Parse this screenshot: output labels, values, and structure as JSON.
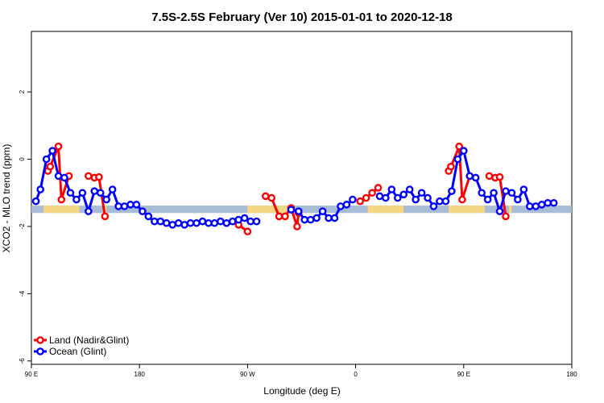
{
  "chart_data": {
    "type": "line",
    "title": "7.5S-2.5S February (Ver 10)   2015-01-01 to 2020-12-18",
    "xlabel": "Longitude (deg E)",
    "ylabel": "XCO2 - MLO trend (ppm)",
    "xlim": [
      90,
      450
    ],
    "ylim": [
      -6.1,
      3.8
    ],
    "x_ticks": [
      {
        "value": 90,
        "label": "90 E"
      },
      {
        "value": 162,
        "label": "180"
      },
      {
        "value": 234,
        "label": "90 W"
      },
      {
        "value": 306,
        "label": "0"
      },
      {
        "value": 378,
        "label": "90 E"
      },
      {
        "value": 450,
        "label": "180"
      }
    ],
    "y_ticks": [
      {
        "value": 2,
        "label": "2"
      },
      {
        "value": 0,
        "label": "0"
      },
      {
        "value": -2,
        "label": "-2"
      },
      {
        "value": -4,
        "label": "-4"
      },
      {
        "value": -6,
        "label": "-6"
      }
    ],
    "band": {
      "y_range": [
        -1.6,
        -1.38
      ],
      "ocean_color": "#a8bcd8",
      "land_color": "#f5d682",
      "land_ranges": [
        [
          98,
          100
        ],
        [
          100,
          122
        ],
        [
          138,
          140
        ],
        [
          234,
          262
        ],
        [
          314,
          338
        ],
        [
          368,
          370
        ],
        [
          370,
          392
        ],
        [
          408,
          410
        ]
      ]
    },
    "series": [
      {
        "name": "Land (Nadir&Glint)",
        "color": "#ff0000",
        "segments": [
          [
            [
              101,
              -0.35
            ],
            [
              102.5,
              -0.22
            ],
            [
              108,
              0.38
            ],
            [
              110,
              -1.2
            ],
            [
              115,
              -0.5
            ]
          ],
          [
            [
              128,
              -0.5
            ],
            [
              132,
              -0.55
            ],
            [
              135,
              -0.53
            ],
            [
              139,
              -1.7
            ]
          ],
          [
            [
              228,
              -1.95
            ],
            [
              234,
              -2.15
            ]
          ],
          [
            [
              246,
              -1.1
            ],
            [
              250,
              -1.15
            ],
            [
              255,
              -1.7
            ],
            [
              259,
              -1.7
            ],
            [
              263,
              -1.45
            ],
            [
              267,
              -2.0
            ],
            [
              268,
              -1.6
            ]
          ],
          [
            [
              309,
              -1.25
            ],
            [
              313,
              -1.15
            ],
            [
              317,
              -1.0
            ],
            [
              321,
              -0.85
            ]
          ],
          [
            [
              368,
              -0.35
            ],
            [
              369.5,
              -0.22
            ],
            [
              375,
              0.38
            ],
            [
              377,
              -1.2
            ],
            [
              382,
              -0.5
            ]
          ],
          [
            [
              395,
              -0.5
            ],
            [
              399,
              -0.55
            ],
            [
              402,
              -0.53
            ],
            [
              406,
              -1.7
            ]
          ]
        ]
      },
      {
        "name": "Ocean (Glint)",
        "color": "#0000ff",
        "segments": [
          [
            [
              93,
              -1.25
            ],
            [
              96,
              -0.9
            ],
            [
              100,
              0.0
            ],
            [
              104,
              0.25
            ],
            [
              108,
              -0.5
            ],
            [
              112,
              -0.55
            ],
            [
              116,
              -1.0
            ],
            [
              120,
              -1.2
            ],
            [
              124,
              -1.0
            ],
            [
              128,
              -1.55
            ],
            [
              132,
              -0.95
            ],
            [
              136,
              -1.0
            ],
            [
              140,
              -1.2
            ],
            [
              144,
              -0.9
            ],
            [
              148,
              -1.4
            ],
            [
              152,
              -1.4
            ],
            [
              156,
              -1.35
            ],
            [
              160,
              -1.35
            ],
            [
              164,
              -1.55
            ],
            [
              168,
              -1.7
            ],
            [
              172,
              -1.85
            ],
            [
              176,
              -1.85
            ],
            [
              180,
              -1.9
            ],
            [
              184,
              -1.95
            ],
            [
              188,
              -1.9
            ],
            [
              192,
              -1.95
            ],
            [
              196,
              -1.9
            ],
            [
              200,
              -1.9
            ],
            [
              204,
              -1.85
            ],
            [
              208,
              -1.9
            ],
            [
              212,
              -1.9
            ],
            [
              216,
              -1.85
            ],
            [
              220,
              -1.9
            ],
            [
              224,
              -1.85
            ],
            [
              228,
              -1.8
            ],
            [
              232,
              -1.75
            ],
            [
              236,
              -1.85
            ],
            [
              240,
              -1.85
            ]
          ],
          [
            [
              263,
              -1.5
            ],
            [
              268,
              -1.55
            ],
            [
              272,
              -1.8
            ],
            [
              276,
              -1.8
            ],
            [
              280,
              -1.75
            ],
            [
              284,
              -1.55
            ],
            [
              288,
              -1.75
            ],
            [
              292,
              -1.75
            ],
            [
              296,
              -1.4
            ],
            [
              300,
              -1.35
            ],
            [
              304,
              -1.2
            ]
          ],
          [
            [
              322,
              -1.1
            ],
            [
              326,
              -1.15
            ],
            [
              330,
              -0.9
            ],
            [
              334,
              -1.15
            ],
            [
              338,
              -1.05
            ],
            [
              342,
              -0.9
            ],
            [
              346,
              -1.2
            ],
            [
              350,
              -1.0
            ],
            [
              354,
              -1.15
            ],
            [
              358,
              -1.4
            ],
            [
              362,
              -1.25
            ],
            [
              366,
              -1.25
            ],
            [
              370,
              -0.95
            ],
            [
              374,
              0.0
            ],
            [
              378,
              0.25
            ],
            [
              382,
              -0.5
            ],
            [
              386,
              -0.55
            ],
            [
              390,
              -1.0
            ],
            [
              394,
              -1.2
            ],
            [
              398,
              -1.0
            ],
            [
              402,
              -1.55
            ],
            [
              406,
              -0.95
            ],
            [
              410,
              -1.0
            ],
            [
              414,
              -1.2
            ],
            [
              418,
              -0.9
            ],
            [
              422,
              -1.4
            ],
            [
              426,
              -1.4
            ],
            [
              430,
              -1.35
            ],
            [
              434,
              -1.3
            ],
            [
              438,
              -1.3
            ]
          ]
        ]
      }
    ],
    "legend": {
      "position": "bottom-left",
      "entries": [
        "Land (Nadir&Glint)",
        "Ocean (Glint)"
      ]
    },
    "grid": false
  }
}
